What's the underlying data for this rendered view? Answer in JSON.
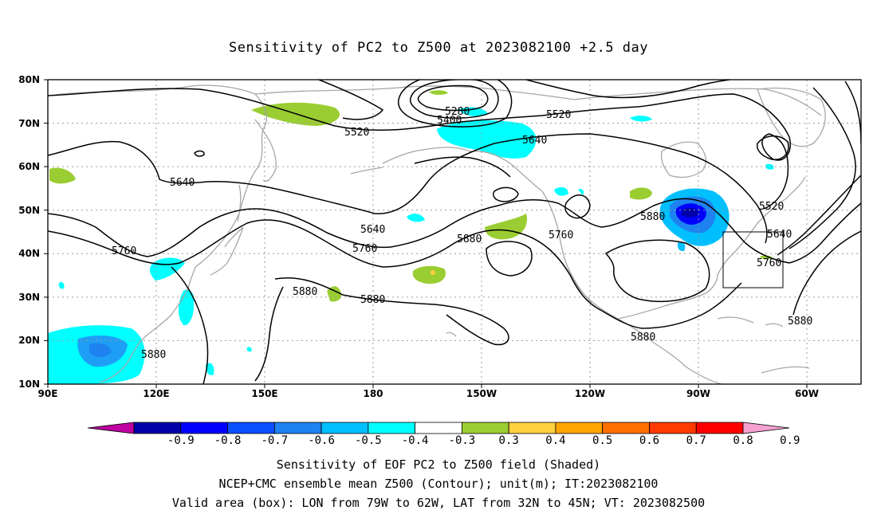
{
  "title": "Sensitivity of PC2 to Z500 at 2023082100 +2.5 day",
  "map": {
    "lat_ticks": [
      "80N",
      "70N",
      "60N",
      "50N",
      "40N",
      "30N",
      "20N",
      "10N"
    ],
    "lon_ticks": [
      "90E",
      "120E",
      "150E",
      "180",
      "150W",
      "120W",
      "90W",
      "60W"
    ],
    "contour_labels": [
      "5280",
      "5400",
      "5520",
      "5520",
      "5520",
      "5640",
      "5640",
      "5640",
      "5640",
      "5760",
      "5760",
      "5760",
      "5760",
      "5880",
      "5880",
      "5880",
      "5880",
      "5880",
      "5880",
      "5880"
    ],
    "valid_box": {
      "lon_w": "79W",
      "lon_e": "62W",
      "lat_s": "32N",
      "lat_n": "45N"
    }
  },
  "colorbar": {
    "labels": [
      "-0.9",
      "-0.8",
      "-0.7",
      "-0.6",
      "-0.5",
      "-0.4",
      "-0.3",
      "0.3",
      "0.4",
      "0.5",
      "0.6",
      "0.7",
      "0.8",
      "0.9"
    ],
    "colors": [
      "#c000a0",
      "#0000a8",
      "#0000ff",
      "#0a50ff",
      "#1e82f0",
      "#00bfff",
      "#00ffff",
      "#ffffff",
      "#9acd32",
      "#ffd040",
      "#ffa500",
      "#ff7000",
      "#ff3a00",
      "#ff0000",
      "#f5a0d0"
    ]
  },
  "captions": {
    "line1": "Sensitivity of EOF PC2 to Z500 field (Shaded)",
    "line2": "NCEP+CMC ensemble mean Z500 (Contour); unit(m); IT:2023082100",
    "line3": "Valid area (box): LON from 79W to 62W, LAT from 32N to 45N; VT: 2023082500"
  }
}
